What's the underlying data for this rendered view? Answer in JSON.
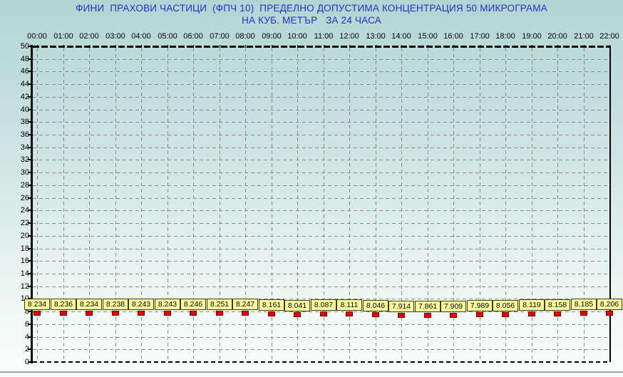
{
  "title": {
    "line1": "ФИНИ  ПРАХОВИ ЧАСТИЦИ  (ФПЧ 10)  ПРЕДЕЛНО ДОПУСТИМА КОНЦЕНТРАЦИЯ 50 МИКРОГРАМА",
    "line2": "НА КУБ. МЕТЪР   ЗА 24 ЧАСА"
  },
  "chart_data": {
    "type": "scatter",
    "title": "ФИНИ ПРАХОВИ ЧАСТИЦИ (ФПЧ 10) ПРЕДЕЛНО ДОПУСТИМА КОНЦЕНТРАЦИЯ 50 МИКРОГРАМА НА КУБ. МЕТЪР ЗА 24 ЧАСА",
    "categories": [
      "00:00",
      "01:00",
      "02:00",
      "03:00",
      "04:00",
      "05:00",
      "06:00",
      "07:00",
      "08:00",
      "09:00",
      "10:00",
      "11:00",
      "12:00",
      "13:00",
      "14:00",
      "15:00",
      "16:00",
      "17:00",
      "18:00",
      "19:00",
      "20:00",
      "21:00",
      "22:00"
    ],
    "values": [
      8.234,
      8.236,
      8.234,
      8.238,
      8.243,
      8.243,
      8.246,
      8.251,
      8.247,
      8.161,
      8.041,
      8.087,
      8.111,
      8.046,
      7.914,
      7.861,
      7.909,
      7.989,
      8.056,
      8.119,
      8.158,
      8.185,
      8.206
    ],
    "xlabel": "",
    "ylabel": "",
    "ylim": [
      0,
      50
    ],
    "yticks": [
      0,
      2,
      4,
      6,
      8,
      10,
      12,
      14,
      16,
      18,
      20,
      22,
      24,
      26,
      28,
      30,
      32,
      34,
      36,
      38,
      40,
      42,
      44,
      46,
      48,
      50
    ],
    "limit_value": 50,
    "grid": true,
    "legend": false,
    "x_axis_position": "top",
    "value_label_decimals": 3,
    "colors": {
      "title_text": "#2b2bc4",
      "axis_text": "#000000",
      "grid_line": "#8c8c8c",
      "axis_line": "#000000",
      "marker_fill": "#e10000",
      "marker_border": "#7a0000",
      "value_box_fill": "#ffff9e",
      "value_box_border": "#3c3c10",
      "background_top": "#b2d6d4",
      "background_bottom": "#fbfdfc"
    }
  }
}
